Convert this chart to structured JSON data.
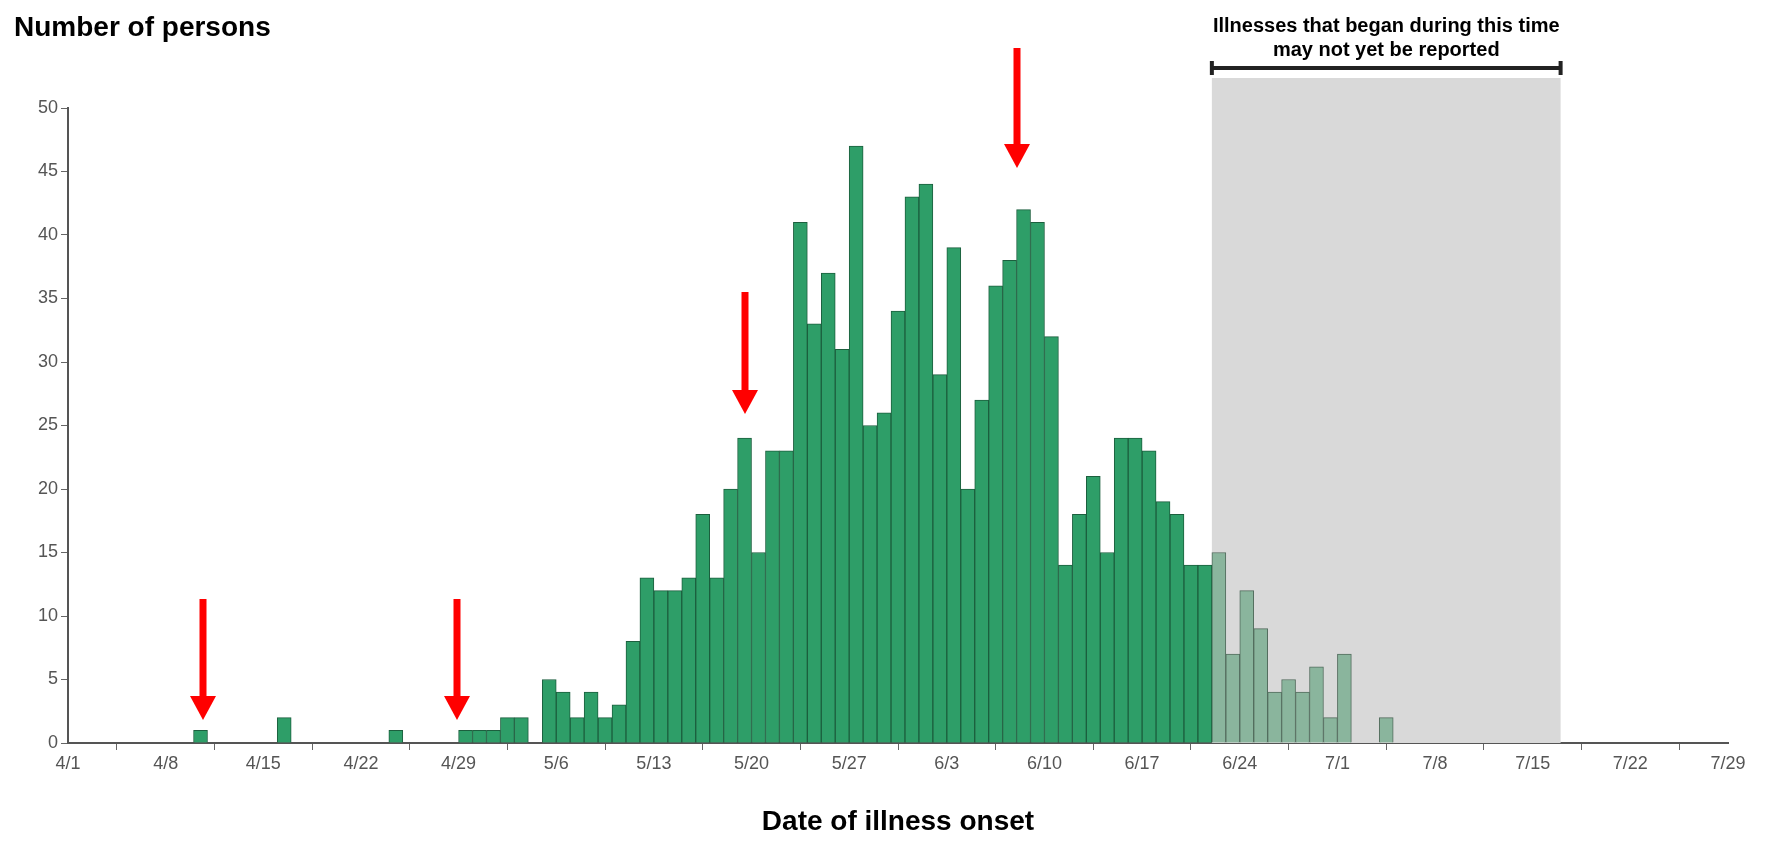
{
  "chart_data": {
    "type": "bar",
    "xlabel": "Date of illness onset",
    "ylabel": "Number of persons",
    "xlim": [
      "--04-01",
      "--07-29"
    ],
    "xticks": [
      {
        "value": "--04-01",
        "label": "4/1"
      },
      {
        "value": "--04-08",
        "label": "4/8"
      },
      {
        "value": "--04-15",
        "label": "4/15"
      },
      {
        "value": "--04-22",
        "label": "4/22"
      },
      {
        "value": "--04-29",
        "label": "4/29"
      },
      {
        "value": "--05-06",
        "label": "5/6"
      },
      {
        "value": "--05-13",
        "label": "5/13"
      },
      {
        "value": "--05-20",
        "label": "5/20"
      },
      {
        "value": "--05-27",
        "label": "5/27"
      },
      {
        "value": "--06-03",
        "label": "6/3"
      },
      {
        "value": "--06-10",
        "label": "6/10"
      },
      {
        "value": "--06-17",
        "label": "6/17"
      },
      {
        "value": "--06-24",
        "label": "6/24"
      },
      {
        "value": "--07-01",
        "label": "7/1"
      },
      {
        "value": "--07-08",
        "label": "7/8"
      },
      {
        "value": "--07-15",
        "label": "7/15"
      },
      {
        "value": "--07-22",
        "label": "7/22"
      },
      {
        "value": "--07-29",
        "label": "7/29"
      }
    ],
    "ylim": [
      0,
      50
    ],
    "yticks": [
      0,
      5,
      10,
      15,
      20,
      25,
      30,
      35,
      40,
      45,
      50
    ],
    "grid": false,
    "legend": false,
    "bands": [
      {
        "axis": "x",
        "from": "--06-22",
        "to": "--07-17",
        "label": "Illnesses that began during this time may not yet be reported",
        "color": "#d9d9d9"
      }
    ],
    "series": [
      {
        "color": "#2e9e68",
        "x": [
          "--04-10",
          "--04-16",
          "--04-24",
          "--04-29",
          "--04-30",
          "--05-01",
          "--05-02",
          "--05-03",
          "--05-05",
          "--05-06",
          "--05-07",
          "--05-08",
          "--05-09",
          "--05-10",
          "--05-11",
          "--05-12",
          "--05-13",
          "--05-14",
          "--05-15",
          "--05-16",
          "--05-17",
          "--05-18",
          "--05-19",
          "--05-20",
          "--05-21",
          "--05-22",
          "--05-23",
          "--05-24",
          "--05-25",
          "--05-26",
          "--05-27",
          "--05-28",
          "--05-29",
          "--05-30",
          "--05-31",
          "--06-01",
          "--06-02",
          "--06-03",
          "--06-04",
          "--06-05",
          "--06-06",
          "--06-07",
          "--06-08",
          "--06-09",
          "--06-10",
          "--06-11",
          "--06-12",
          "--06-13",
          "--06-14",
          "--06-15",
          "--06-16",
          "--06-17",
          "--06-18",
          "--06-19",
          "--06-20",
          "--06-21"
        ],
        "values": [
          1,
          2,
          1,
          1,
          1,
          1,
          2,
          2,
          5,
          4,
          2,
          4,
          2,
          3,
          8,
          13,
          12,
          12,
          13,
          18,
          13,
          20,
          24,
          15,
          23,
          23,
          41,
          33,
          37,
          31,
          47,
          25,
          26,
          34,
          43,
          44,
          29,
          39,
          20,
          27,
          36,
          38,
          42,
          41,
          32,
          14,
          18,
          21,
          15,
          24,
          24,
          23,
          19,
          18,
          14,
          14
        ]
      },
      {
        "color": "#8ab59d",
        "x": [
          "--06-22",
          "--06-23",
          "--06-24",
          "--06-25",
          "--06-26",
          "--06-27",
          "--06-28",
          "--06-29",
          "--06-30",
          "--07-01",
          "--07-04"
        ],
        "values": [
          15,
          7,
          12,
          9,
          4,
          5,
          4,
          6,
          2,
          7,
          2
        ]
      }
    ]
  }
}
